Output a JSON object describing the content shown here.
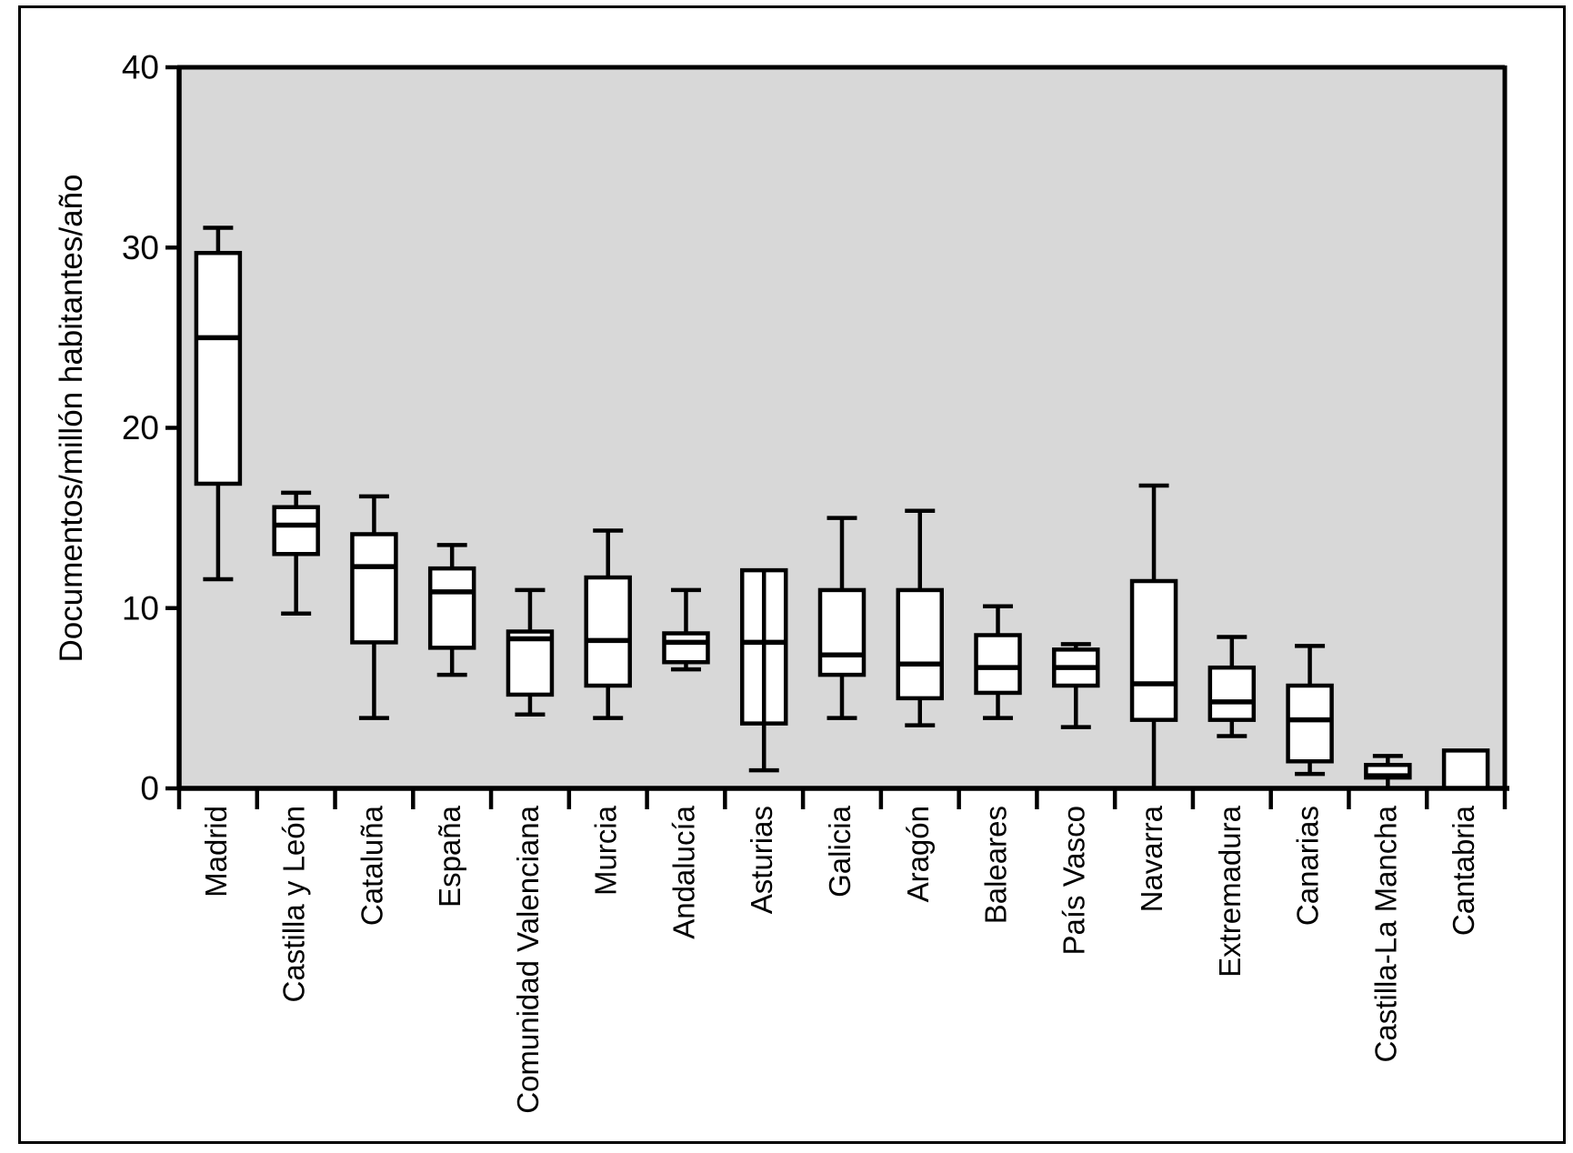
{
  "figure": {
    "kind": "statistical-boxplot-figure",
    "background": "#ffffff",
    "border_color": "#000000"
  },
  "chart_data": {
    "type": "box",
    "title": "",
    "xlabel": "",
    "ylabel": "Documentos/millón habitantes/año",
    "ylim": [
      0,
      40
    ],
    "yticks": [
      0,
      10,
      20,
      30,
      40
    ],
    "grid": false,
    "legend": null,
    "plot_background": "#d8d8d8",
    "box_fill": "#ffffff",
    "line_color": "#000000",
    "categories": [
      "Madrid",
      "Castilla y León",
      "Cataluña",
      "España",
      "Comunidad Valenciana",
      "Murcia",
      "Andalucía",
      "Asturias",
      "Galicia",
      "Aragón",
      "Baleares",
      "País Vasco",
      "Navarra",
      "Extremadura",
      "Canarias",
      "Castilla-La Mancha",
      "Cantabria"
    ],
    "series": [
      {
        "name": "Madrid",
        "min": 11.6,
        "q1": 16.9,
        "median": 25.0,
        "q3": 29.7,
        "max": 31.1,
        "upper_cap": true,
        "lower_cap": true,
        "whisker_through_box": false
      },
      {
        "name": "Castilla y León",
        "min": 9.7,
        "q1": 13.0,
        "median": 14.6,
        "q3": 15.6,
        "max": 16.4,
        "upper_cap": true,
        "lower_cap": true,
        "whisker_through_box": false
      },
      {
        "name": "Cataluña",
        "min": 3.9,
        "q1": 8.1,
        "median": 12.3,
        "q3": 14.1,
        "max": 16.2,
        "upper_cap": true,
        "lower_cap": true,
        "whisker_through_box": false
      },
      {
        "name": "España",
        "min": 6.3,
        "q1": 7.8,
        "median": 10.9,
        "q3": 12.2,
        "max": 13.5,
        "upper_cap": true,
        "lower_cap": true,
        "whisker_through_box": false
      },
      {
        "name": "Comunidad Valenciana",
        "min": 4.1,
        "q1": 5.2,
        "median": 8.3,
        "q3": 8.7,
        "max": 11.0,
        "upper_cap": true,
        "lower_cap": true,
        "whisker_through_box": false
      },
      {
        "name": "Murcia",
        "min": 3.9,
        "q1": 5.7,
        "median": 8.2,
        "q3": 11.7,
        "max": 14.3,
        "upper_cap": true,
        "lower_cap": true,
        "whisker_through_box": false
      },
      {
        "name": "Andalucía",
        "min": 6.6,
        "q1": 7.0,
        "median": 8.1,
        "q3": 8.6,
        "max": 11.0,
        "upper_cap": true,
        "lower_cap": true,
        "whisker_through_box": false
      },
      {
        "name": "Asturias",
        "min": 1.0,
        "q1": 3.6,
        "median": 8.1,
        "q3": 12.1,
        "max": 12.1,
        "upper_cap": false,
        "lower_cap": true,
        "whisker_through_box": true
      },
      {
        "name": "Galicia",
        "min": 3.9,
        "q1": 6.3,
        "median": 7.4,
        "q3": 11.0,
        "max": 15.0,
        "upper_cap": true,
        "lower_cap": true,
        "whisker_through_box": false
      },
      {
        "name": "Aragón",
        "min": 3.5,
        "q1": 5.0,
        "median": 6.9,
        "q3": 11.0,
        "max": 15.4,
        "upper_cap": true,
        "lower_cap": true,
        "whisker_through_box": false
      },
      {
        "name": "Baleares",
        "min": 3.9,
        "q1": 5.3,
        "median": 6.7,
        "q3": 8.5,
        "max": 10.1,
        "upper_cap": true,
        "lower_cap": true,
        "whisker_through_box": false
      },
      {
        "name": "País Vasco",
        "min": 3.4,
        "q1": 5.7,
        "median": 6.7,
        "q3": 7.7,
        "max": 8.0,
        "upper_cap": true,
        "lower_cap": true,
        "whisker_through_box": false
      },
      {
        "name": "Navarra",
        "min": 0.0,
        "q1": 3.8,
        "median": 5.8,
        "q3": 11.5,
        "max": 16.8,
        "upper_cap": true,
        "lower_cap": false,
        "whisker_through_box": false
      },
      {
        "name": "Extremadura",
        "min": 2.9,
        "q1": 3.8,
        "median": 4.8,
        "q3": 6.7,
        "max": 8.4,
        "upper_cap": true,
        "lower_cap": true,
        "whisker_through_box": false
      },
      {
        "name": "Canarias",
        "min": 0.8,
        "q1": 1.5,
        "median": 3.8,
        "q3": 5.7,
        "max": 7.9,
        "upper_cap": true,
        "lower_cap": true,
        "whisker_through_box": false
      },
      {
        "name": "Castilla-La Mancha",
        "min": 0.0,
        "q1": 0.6,
        "median": 0.7,
        "q3": 1.3,
        "max": 1.8,
        "upper_cap": true,
        "lower_cap": false,
        "whisker_through_box": false
      },
      {
        "name": "Cantabria",
        "min": null,
        "q1": 0.0,
        "median": null,
        "q3": 2.1,
        "max": null,
        "upper_cap": false,
        "lower_cap": false,
        "whisker_through_box": false
      }
    ]
  }
}
